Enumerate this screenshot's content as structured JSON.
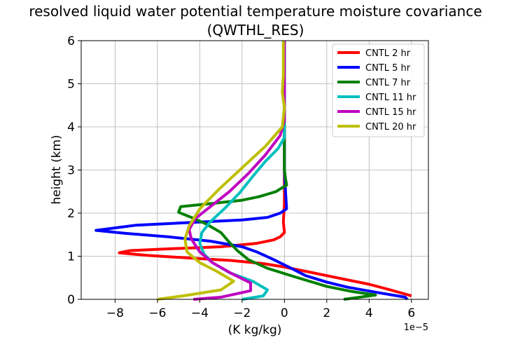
{
  "chart_data": {
    "type": "line",
    "title_line1": "resolved liquid water potential temperature moisture covariance",
    "title_line2": "(QWTHL_RES)",
    "xlabel": "(K kg/kg)",
    "ylabel": "height (km)",
    "x_offset_label": "1e−5",
    "xlim": [
      -9.6,
      6.8
    ],
    "ylim": [
      0,
      6
    ],
    "x_ticks": [
      -8,
      -6,
      -4,
      -2,
      0,
      2,
      4,
      6
    ],
    "x_tick_labels": [
      "−8",
      "−6",
      "−4",
      "−2",
      "0",
      "2",
      "4",
      "6"
    ],
    "y_ticks": [
      0,
      1,
      2,
      3,
      4,
      5,
      6
    ],
    "y_tick_labels": [
      "0",
      "1",
      "2",
      "3",
      "4",
      "5",
      "6"
    ],
    "grid": true,
    "legend_position": "top-right",
    "series": [
      {
        "name": "CNTL 2 hr",
        "color": "#ff0000",
        "points": [
          [
            6.0,
            0.08
          ],
          [
            5.0,
            0.22
          ],
          [
            4.0,
            0.35
          ],
          [
            2.5,
            0.5
          ],
          [
            1.0,
            0.65
          ],
          [
            0.0,
            0.75
          ],
          [
            -1.0,
            0.83
          ],
          [
            -2.5,
            0.9
          ],
          [
            -4.5,
            0.96
          ],
          [
            -6.5,
            1.02
          ],
          [
            -7.8,
            1.08
          ],
          [
            -7.3,
            1.13
          ],
          [
            -5.5,
            1.17
          ],
          [
            -3.0,
            1.22
          ],
          [
            -1.3,
            1.3
          ],
          [
            -0.5,
            1.38
          ],
          [
            -0.2,
            1.45
          ],
          [
            0.0,
            1.55
          ],
          [
            -0.05,
            1.8
          ],
          [
            0.0,
            2.2
          ],
          [
            0.0,
            3.0
          ],
          [
            0.0,
            4.0
          ],
          [
            0.0,
            5.0
          ],
          [
            0.0,
            6.0
          ]
        ]
      },
      {
        "name": "CNTL 5 hr",
        "color": "#0000ff",
        "points": [
          [
            5.8,
            0.0
          ],
          [
            5.7,
            0.05
          ],
          [
            4.5,
            0.15
          ],
          [
            3.0,
            0.28
          ],
          [
            2.0,
            0.4
          ],
          [
            1.0,
            0.55
          ],
          [
            0.2,
            0.75
          ],
          [
            -0.5,
            0.92
          ],
          [
            -1.3,
            1.1
          ],
          [
            -2.0,
            1.22
          ],
          [
            -3.5,
            1.35
          ],
          [
            -5.5,
            1.45
          ],
          [
            -7.5,
            1.53
          ],
          [
            -8.9,
            1.6
          ],
          [
            -7.0,
            1.72
          ],
          [
            -4.5,
            1.78
          ],
          [
            -2.0,
            1.84
          ],
          [
            -0.8,
            1.9
          ],
          [
            -0.2,
            2.0
          ],
          [
            0.1,
            2.1
          ],
          [
            0.05,
            2.5
          ],
          [
            0.0,
            3.0
          ],
          [
            0.0,
            4.0
          ],
          [
            0.0,
            5.0
          ],
          [
            0.0,
            6.0
          ]
        ]
      },
      {
        "name": "CNTL 7 hr",
        "color": "#008000",
        "points": [
          [
            2.8,
            0.0
          ],
          [
            4.3,
            0.1
          ],
          [
            3.2,
            0.18
          ],
          [
            2.0,
            0.3
          ],
          [
            0.5,
            0.52
          ],
          [
            -0.8,
            0.72
          ],
          [
            -1.7,
            0.92
          ],
          [
            -2.2,
            1.12
          ],
          [
            -2.6,
            1.32
          ],
          [
            -3.0,
            1.55
          ],
          [
            -3.7,
            1.75
          ],
          [
            -4.4,
            1.9
          ],
          [
            -5.0,
            2.02
          ],
          [
            -4.9,
            2.15
          ],
          [
            -3.5,
            2.22
          ],
          [
            -2.0,
            2.3
          ],
          [
            -1.2,
            2.38
          ],
          [
            -0.4,
            2.5
          ],
          [
            0.1,
            2.65
          ],
          [
            0.05,
            2.8
          ],
          [
            0.0,
            3.0
          ],
          [
            0.0,
            4.0
          ],
          [
            0.0,
            5.0
          ],
          [
            0.0,
            6.0
          ]
        ]
      },
      {
        "name": "CNTL 11 hr",
        "color": "#00bfbf",
        "points": [
          [
            -2.0,
            0.0
          ],
          [
            -1.0,
            0.08
          ],
          [
            -0.8,
            0.22
          ],
          [
            -1.5,
            0.42
          ],
          [
            -2.6,
            0.62
          ],
          [
            -3.4,
            0.85
          ],
          [
            -3.8,
            1.05
          ],
          [
            -4.0,
            1.3
          ],
          [
            -3.9,
            1.55
          ],
          [
            -3.5,
            1.8
          ],
          [
            -2.8,
            2.12
          ],
          [
            -2.1,
            2.48
          ],
          [
            -1.5,
            2.85
          ],
          [
            -0.9,
            3.2
          ],
          [
            -0.3,
            3.5
          ],
          [
            0.0,
            3.75
          ],
          [
            0.0,
            4.0
          ],
          [
            0.0,
            5.0
          ],
          [
            0.0,
            6.0
          ]
        ]
      },
      {
        "name": "CNTL 15 hr",
        "color": "#bf00bf",
        "points": [
          [
            -4.3,
            0.0
          ],
          [
            -3.0,
            0.05
          ],
          [
            -1.6,
            0.2
          ],
          [
            -1.6,
            0.38
          ],
          [
            -2.5,
            0.6
          ],
          [
            -3.4,
            0.85
          ],
          [
            -4.0,
            1.1
          ],
          [
            -4.4,
            1.4
          ],
          [
            -4.5,
            1.62
          ],
          [
            -4.2,
            1.88
          ],
          [
            -3.5,
            2.15
          ],
          [
            -2.6,
            2.5
          ],
          [
            -1.7,
            2.92
          ],
          [
            -0.9,
            3.35
          ],
          [
            -0.2,
            3.8
          ],
          [
            0.0,
            4.15
          ],
          [
            0.0,
            4.5
          ],
          [
            0.0,
            5.0
          ],
          [
            0.0,
            6.0
          ]
        ]
      },
      {
        "name": "CNTL 20 hr",
        "color": "#bfbf00",
        "points": [
          [
            -6.0,
            0.0
          ],
          [
            -4.8,
            0.08
          ],
          [
            -3.0,
            0.22
          ],
          [
            -2.4,
            0.42
          ],
          [
            -3.2,
            0.65
          ],
          [
            -4.0,
            0.85
          ],
          [
            -4.6,
            1.1
          ],
          [
            -4.7,
            1.4
          ],
          [
            -4.5,
            1.7
          ],
          [
            -4.0,
            2.1
          ],
          [
            -3.1,
            2.55
          ],
          [
            -2.0,
            3.05
          ],
          [
            -0.9,
            3.55
          ],
          [
            -0.1,
            4.0
          ],
          [
            0.0,
            4.45
          ],
          [
            -0.1,
            4.8
          ],
          [
            -0.05,
            5.2
          ],
          [
            -0.05,
            5.6
          ],
          [
            -0.05,
            6.0
          ]
        ]
      }
    ]
  }
}
